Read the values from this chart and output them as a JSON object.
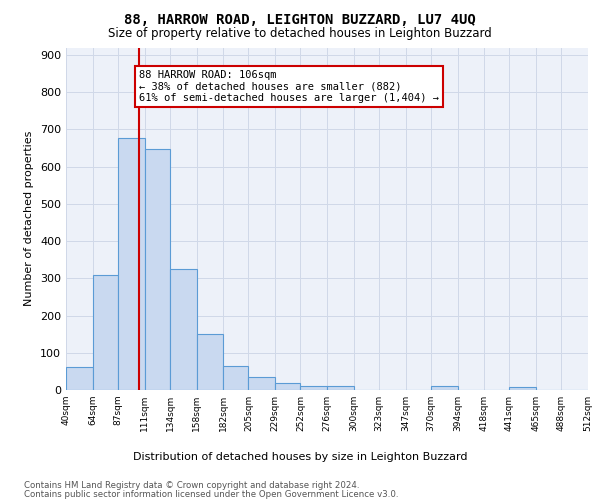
{
  "title": "88, HARROW ROAD, LEIGHTON BUZZARD, LU7 4UQ",
  "subtitle": "Size of property relative to detached houses in Leighton Buzzard",
  "xlabel": "Distribution of detached houses by size in Leighton Buzzard",
  "ylabel": "Number of detached properties",
  "bar_edges": [
    40,
    64,
    87,
    111,
    134,
    158,
    182,
    205,
    229,
    252,
    276,
    300,
    323,
    347,
    370,
    394,
    418,
    441,
    465,
    488,
    512
  ],
  "bar_heights": [
    62,
    310,
    678,
    648,
    325,
    150,
    65,
    35,
    20,
    12,
    12,
    0,
    0,
    0,
    10,
    0,
    0,
    8,
    0,
    0
  ],
  "bar_color": "#c9d9f0",
  "bar_edge_color": "#5b9bd5",
  "grid_color": "#d0d8e8",
  "property_size": 106,
  "property_line_color": "#cc0000",
  "annotation_text": "88 HARROW ROAD: 106sqm\n← 38% of detached houses are smaller (882)\n61% of semi-detached houses are larger (1,404) →",
  "annotation_box_color": "#cc0000",
  "ylim": [
    0,
    920
  ],
  "yticks": [
    0,
    100,
    200,
    300,
    400,
    500,
    600,
    700,
    800,
    900
  ],
  "footnote1": "Contains HM Land Registry data © Crown copyright and database right 2024.",
  "footnote2": "Contains public sector information licensed under the Open Government Licence v3.0.",
  "bg_color": "#edf1f9"
}
